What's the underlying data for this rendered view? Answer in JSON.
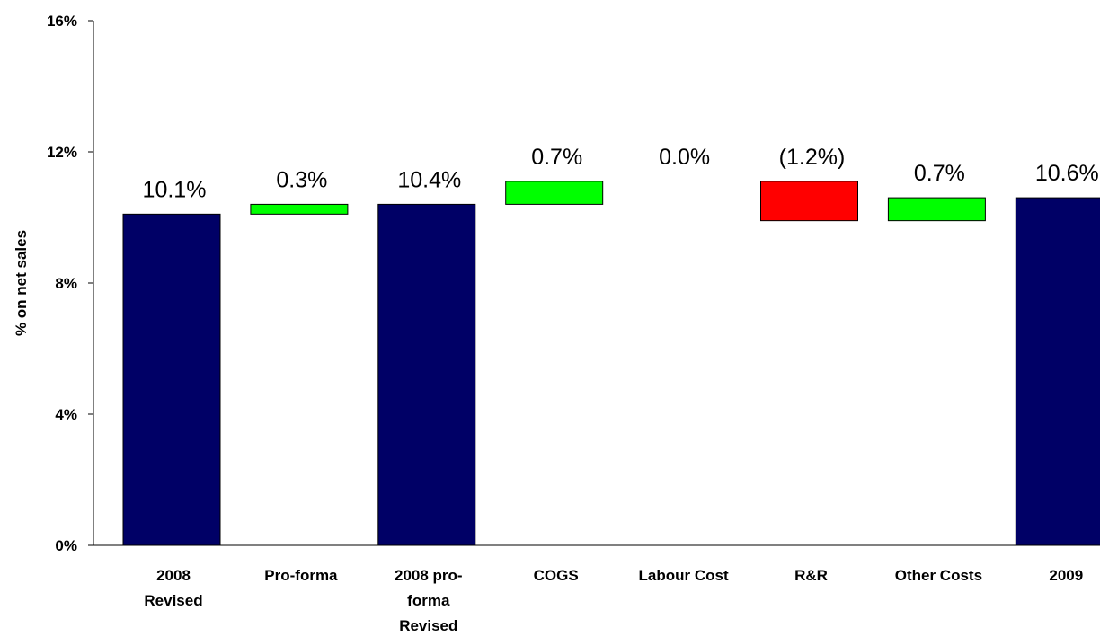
{
  "chart_data": {
    "type": "bar",
    "subtype": "waterfall",
    "ylabel": "% on net sales",
    "xlabel": "",
    "ylim": [
      0,
      16
    ],
    "yticks": [
      0,
      4,
      8,
      12,
      16
    ],
    "ytick_labels": [
      "0%",
      "4%",
      "8%",
      "12%",
      "16%"
    ],
    "grid": false,
    "legend": "none",
    "colors": {
      "total": "#000066",
      "increase": "#00ff00",
      "decrease": "#ff0000"
    },
    "bars": [
      {
        "category": "2008 Revised",
        "kind": "total",
        "base": 0,
        "value": 10.1,
        "label": "10.1%"
      },
      {
        "category": "Pro-forma",
        "kind": "increase",
        "base": 10.1,
        "value": 0.3,
        "label": "0.3%"
      },
      {
        "category": "2008 pro-forma Revised",
        "kind": "total",
        "base": 0,
        "value": 10.4,
        "label": "10.4%"
      },
      {
        "category": "COGS",
        "kind": "increase",
        "base": 10.4,
        "value": 0.7,
        "label": "0.7%"
      },
      {
        "category": "Labour Cost",
        "kind": "increase",
        "base": 11.1,
        "value": 0.0,
        "label": "0.0%"
      },
      {
        "category": "R&R",
        "kind": "decrease",
        "base": 9.9,
        "value": 1.2,
        "label": "(1.2%)"
      },
      {
        "category": "Other Costs",
        "kind": "increase",
        "base": 9.9,
        "value": 0.7,
        "label": "0.7%"
      },
      {
        "category": "2009",
        "kind": "total",
        "base": 0,
        "value": 10.6,
        "label": "10.6%"
      }
    ],
    "category_lines": [
      [
        "2008",
        "Revised"
      ],
      [
        "Pro-forma"
      ],
      [
        "2008 pro-",
        "forma",
        "Revised"
      ],
      [
        "COGS"
      ],
      [
        "Labour Cost"
      ],
      [
        "R&R"
      ],
      [
        "Other Costs"
      ],
      [
        "2009"
      ]
    ]
  }
}
